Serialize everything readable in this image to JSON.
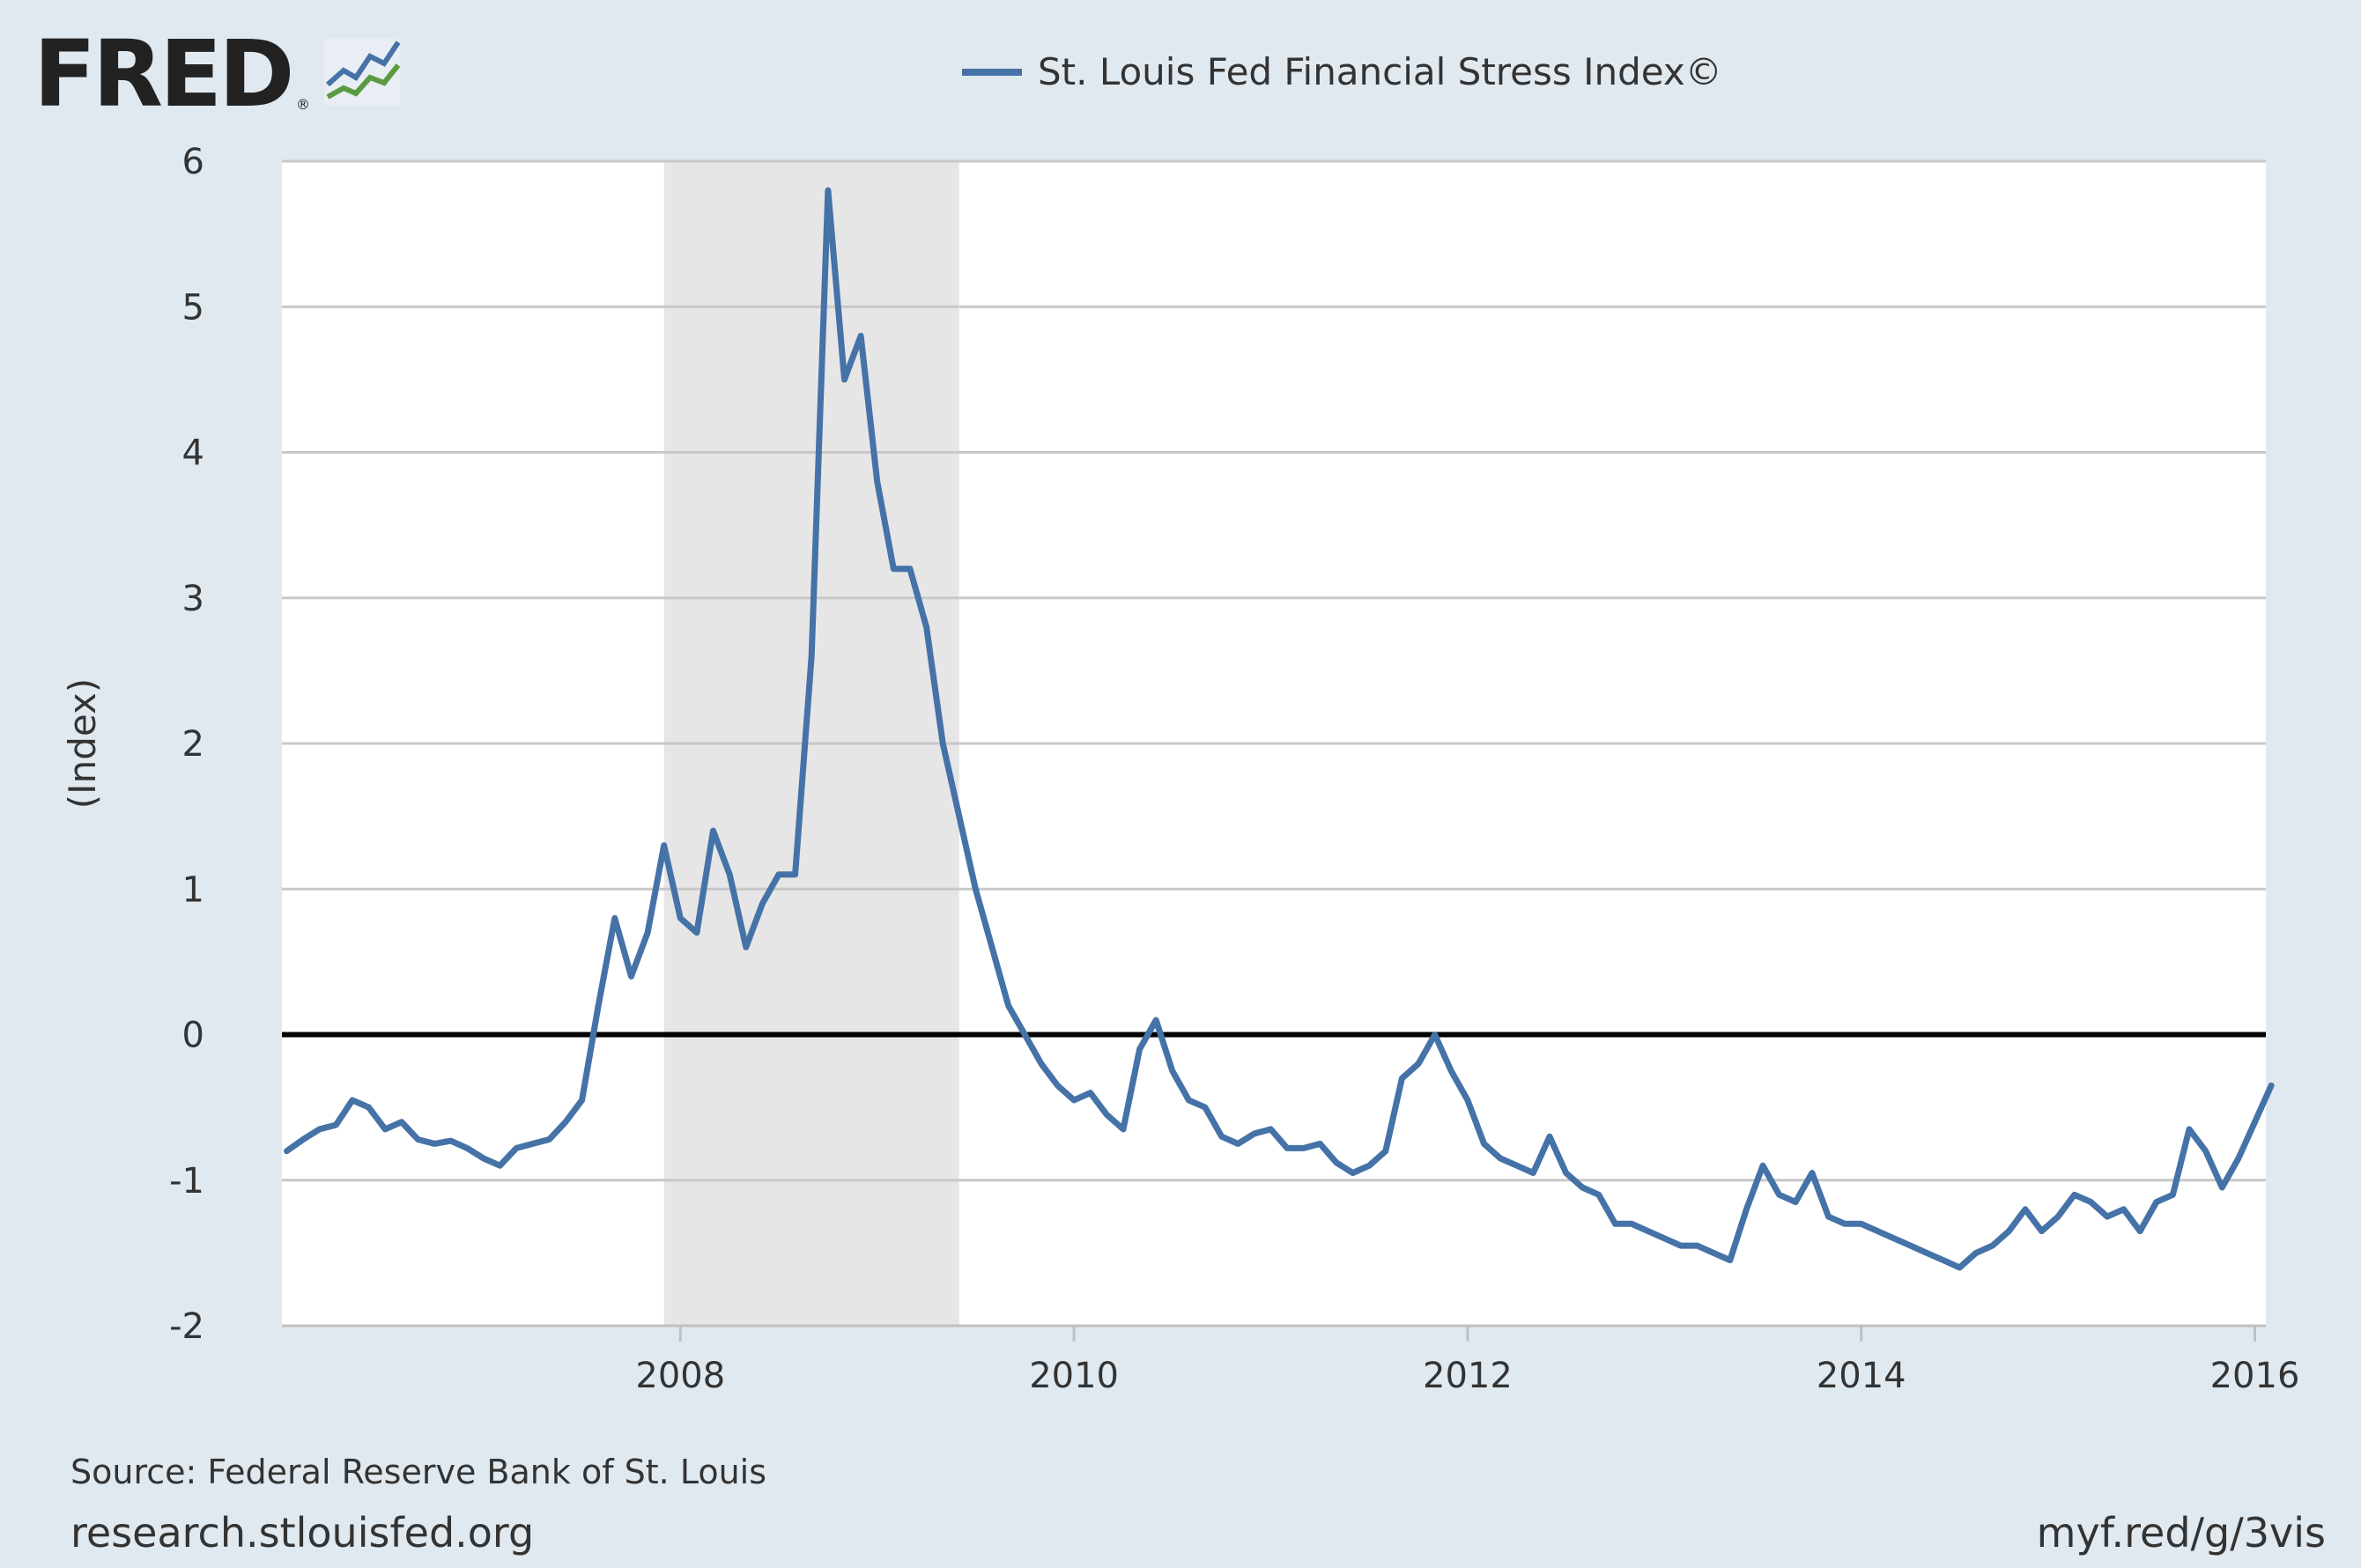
{
  "header": {
    "logo_text": "FRED",
    "logo_mark": "®",
    "logo_icon": "fred-chart-icon"
  },
  "footer": {
    "source": "Source: Federal Reserve Bank of St. Louis",
    "site": "research.stlouisfed.org",
    "short_link": "myf.red/g/3vis"
  },
  "colors": {
    "background": "#e1e9f0",
    "plot_background": "#ffffff",
    "series": "#4572a7",
    "gridline": "#c8c8c8",
    "recession_band": "#e6e6e6",
    "zero_line": "#000000"
  },
  "chart_data": {
    "type": "line",
    "title": "",
    "xlabel": "",
    "ylabel": "(Index)",
    "xlim": [
      "2006-01-06",
      "2016-02-05"
    ],
    "ylim": [
      -2,
      6
    ],
    "yticks": [
      -2,
      -1,
      0,
      1,
      2,
      3,
      4,
      5,
      6
    ],
    "yticklabels": [
      "-2",
      "-1",
      "0",
      "1",
      "2",
      "3",
      "4",
      "5",
      "6"
    ],
    "xticks": [
      "2008",
      "2010",
      "2012",
      "2014",
      "2016"
    ],
    "grid": true,
    "legend": "top-center",
    "reference_line": 0,
    "recession": {
      "start": "2007-12",
      "end": "2009-06"
    },
    "series": [
      {
        "name": "St. Louis Fed Financial Stress Index©",
        "color": "#4572a7",
        "x": [
          "2006-01",
          "2006-02",
          "2006-03",
          "2006-04",
          "2006-05",
          "2006-06",
          "2006-07",
          "2006-08",
          "2006-09",
          "2006-10",
          "2006-11",
          "2006-12",
          "2007-01",
          "2007-02",
          "2007-03",
          "2007-04",
          "2007-05",
          "2007-06",
          "2007-07",
          "2007-08",
          "2007-09",
          "2007-10",
          "2007-11",
          "2007-12",
          "2008-01",
          "2008-02",
          "2008-03",
          "2008-04",
          "2008-05",
          "2008-06",
          "2008-07",
          "2008-08",
          "2008-09",
          "2008-10",
          "2008-11",
          "2008-12",
          "2009-01",
          "2009-02",
          "2009-03",
          "2009-04",
          "2009-05",
          "2009-06",
          "2009-07",
          "2009-08",
          "2009-09",
          "2009-10",
          "2009-11",
          "2009-12",
          "2010-01",
          "2010-02",
          "2010-03",
          "2010-04",
          "2010-05",
          "2010-06",
          "2010-07",
          "2010-08",
          "2010-09",
          "2010-10",
          "2010-11",
          "2010-12",
          "2011-01",
          "2011-02",
          "2011-03",
          "2011-04",
          "2011-05",
          "2011-06",
          "2011-07",
          "2011-08",
          "2011-09",
          "2011-10",
          "2011-11",
          "2011-12",
          "2012-01",
          "2012-02",
          "2012-03",
          "2012-04",
          "2012-05",
          "2012-06",
          "2012-07",
          "2012-08",
          "2012-09",
          "2012-10",
          "2012-11",
          "2012-12",
          "2013-01",
          "2013-02",
          "2013-03",
          "2013-04",
          "2013-05",
          "2013-06",
          "2013-07",
          "2013-08",
          "2013-09",
          "2013-10",
          "2013-11",
          "2013-12",
          "2014-01",
          "2014-02",
          "2014-03",
          "2014-04",
          "2014-05",
          "2014-06",
          "2014-07",
          "2014-08",
          "2014-09",
          "2014-10",
          "2014-11",
          "2014-12",
          "2015-01",
          "2015-02",
          "2015-03",
          "2015-04",
          "2015-05",
          "2015-06",
          "2015-07",
          "2015-08",
          "2015-09",
          "2015-10",
          "2015-11",
          "2015-12",
          "2016-01",
          "2016-02"
        ],
        "values": [
          -0.8,
          -0.72,
          -0.65,
          -0.62,
          -0.45,
          -0.5,
          -0.65,
          -0.6,
          -0.72,
          -0.75,
          -0.73,
          -0.78,
          -0.85,
          -0.9,
          -0.78,
          -0.75,
          -0.72,
          -0.6,
          -0.45,
          0.2,
          0.8,
          0.4,
          0.7,
          1.3,
          0.8,
          0.7,
          1.4,
          1.1,
          0.6,
          0.9,
          1.1,
          1.1,
          2.6,
          5.8,
          4.5,
          4.8,
          3.8,
          3.2,
          3.2,
          2.8,
          2.0,
          1.5,
          1.0,
          0.6,
          0.2,
          0.0,
          -0.2,
          -0.35,
          -0.45,
          -0.4,
          -0.55,
          -0.65,
          -0.1,
          0.1,
          -0.25,
          -0.45,
          -0.5,
          -0.7,
          -0.75,
          -0.68,
          -0.65,
          -0.78,
          -0.78,
          -0.75,
          -0.88,
          -0.95,
          -0.9,
          -0.8,
          -0.3,
          -0.2,
          0.0,
          -0.25,
          -0.45,
          -0.75,
          -0.85,
          -0.9,
          -0.95,
          -0.7,
          -0.95,
          -1.05,
          -1.1,
          -1.3,
          -1.3,
          -1.35,
          -1.4,
          -1.45,
          -1.45,
          -1.5,
          -1.55,
          -1.2,
          -0.9,
          -1.1,
          -1.15,
          -0.95,
          -1.25,
          -1.3,
          -1.3,
          -1.35,
          -1.4,
          -1.45,
          -1.5,
          -1.55,
          -1.6,
          -1.5,
          -1.45,
          -1.35,
          -1.2,
          -1.35,
          -1.25,
          -1.1,
          -1.15,
          -1.25,
          -1.2,
          -1.35,
          -1.15,
          -1.1,
          -0.65,
          -0.8,
          -1.05,
          -0.85,
          -0.6,
          -0.35
        ]
      }
    ]
  }
}
